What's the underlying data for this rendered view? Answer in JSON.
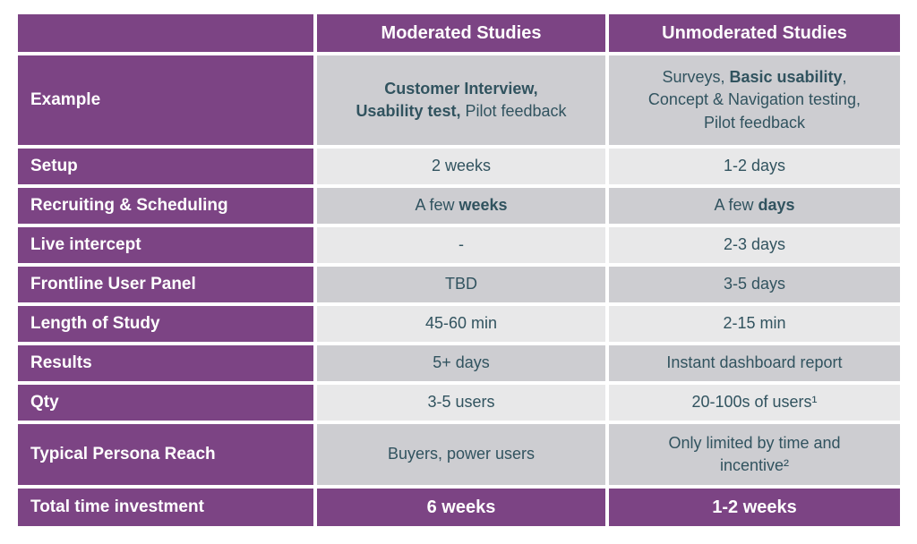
{
  "colors": {
    "accent_purple": "#7c4484",
    "row_dark": "#cdcdd1",
    "row_light": "#e8e8e9",
    "value_text": "#31535f",
    "header_text": "#ffffff"
  },
  "header": {
    "corner": "",
    "moderated": "Moderated Studies",
    "unmoderated": "Unmoderated Studies"
  },
  "rows": [
    {
      "label": "Example",
      "moderated": [
        {
          "t": "Customer Interview,\nUsability test,",
          "b": true
        },
        {
          "t": " Pilot feedback",
          "b": false
        }
      ],
      "unmoderated": [
        {
          "t": "Surveys, ",
          "b": false
        },
        {
          "t": "Basic usability",
          "b": true
        },
        {
          "t": ",\nConcept & Navigation testing,\nPilot feedback",
          "b": false
        }
      ]
    },
    {
      "label": "Setup",
      "moderated": [
        {
          "t": "2 weeks",
          "b": false
        }
      ],
      "unmoderated": [
        {
          "t": "1-2 days",
          "b": false
        }
      ]
    },
    {
      "label": "Recruiting & Scheduling",
      "moderated": [
        {
          "t": "A few ",
          "b": false
        },
        {
          "t": "weeks",
          "b": true
        }
      ],
      "unmoderated": [
        {
          "t": "A few ",
          "b": false
        },
        {
          "t": "days",
          "b": true
        }
      ]
    },
    {
      "label": "Live intercept",
      "moderated": [
        {
          "t": "-",
          "b": false
        }
      ],
      "unmoderated": [
        {
          "t": "2-3 days",
          "b": false
        }
      ]
    },
    {
      "label": "Frontline User Panel",
      "moderated": [
        {
          "t": "TBD",
          "b": false
        }
      ],
      "unmoderated": [
        {
          "t": "3-5 days",
          "b": false
        }
      ]
    },
    {
      "label": "Length of Study",
      "moderated": [
        {
          "t": "45-60 min",
          "b": false
        }
      ],
      "unmoderated": [
        {
          "t": "2-15 min",
          "b": false
        }
      ]
    },
    {
      "label": "Results",
      "moderated": [
        {
          "t": "5+ days",
          "b": false
        }
      ],
      "unmoderated": [
        {
          "t": "Instant dashboard report",
          "b": false
        }
      ]
    },
    {
      "label": "Qty",
      "moderated": [
        {
          "t": "3-5 users",
          "b": false
        }
      ],
      "unmoderated": [
        {
          "t": "20-100s of users¹",
          "b": false
        }
      ]
    },
    {
      "label": "Typical Persona Reach",
      "moderated": [
        {
          "t": "Buyers, power users",
          "b": false
        }
      ],
      "unmoderated": [
        {
          "t": "Only limited by time and\nincentive²",
          "b": false
        }
      ]
    }
  ],
  "footer": {
    "label": "Total time investment",
    "moderated": "6 weeks",
    "unmoderated": "1-2 weeks"
  }
}
